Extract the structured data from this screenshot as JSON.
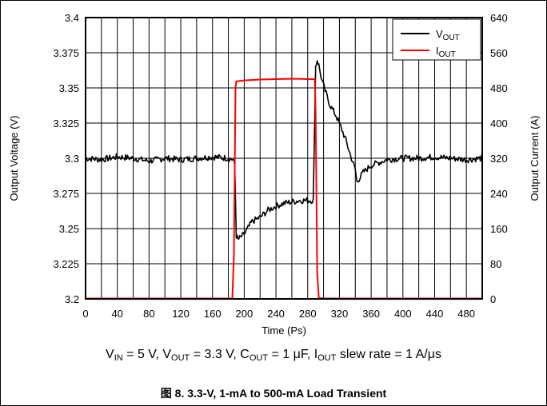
{
  "chart_data": {
    "type": "line",
    "title": "",
    "xlabel": "Time (Ps)",
    "ylabel_left": "Output Voltage (V)",
    "ylabel_right": "Output Current (A)",
    "xlim": [
      0,
      500
    ],
    "ylim_left": [
      3.2,
      3.4
    ],
    "ylim_right": [
      0,
      640
    ],
    "x_ticks": [
      "0",
      "40",
      "80",
      "120",
      "160",
      "200",
      "240",
      "280",
      "320",
      "360",
      "400",
      "440",
      "480"
    ],
    "y_ticks_left": [
      "3.2",
      "3.225",
      "3.25",
      "3.275",
      "3.3",
      "3.325",
      "3.35",
      "3.375",
      "3.4"
    ],
    "y_ticks_right": [
      "0",
      "80",
      "160",
      "240",
      "320",
      "400",
      "480",
      "560",
      "640"
    ],
    "grid": true,
    "legend_position": "top-right",
    "series": [
      {
        "name": "VOUT",
        "name_main": "V",
        "name_sub": "OUT",
        "axis": "left",
        "color": "#000000",
        "x": [
          0,
          20,
          40,
          60,
          80,
          100,
          120,
          140,
          160,
          180,
          186,
          188,
          190,
          192,
          200,
          210,
          220,
          230,
          240,
          250,
          260,
          270,
          280,
          287,
          288,
          290,
          292,
          294,
          298,
          302,
          308,
          316,
          322,
          328,
          334,
          340,
          342,
          350,
          360,
          370,
          380,
          400,
          420,
          440,
          460,
          480,
          500
        ],
        "y": [
          3.3,
          3.299,
          3.301,
          3.3,
          3.298,
          3.3,
          3.299,
          3.3,
          3.301,
          3.3,
          3.299,
          3.295,
          3.245,
          3.242,
          3.246,
          3.255,
          3.258,
          3.263,
          3.266,
          3.268,
          3.269,
          3.27,
          3.27,
          3.27,
          3.3,
          3.365,
          3.37,
          3.366,
          3.355,
          3.348,
          3.338,
          3.33,
          3.322,
          3.313,
          3.302,
          3.292,
          3.283,
          3.29,
          3.295,
          3.297,
          3.299,
          3.3,
          3.3,
          3.301,
          3.3,
          3.299,
          3.3
        ]
      },
      {
        "name": "IOUT",
        "name_main": "I",
        "name_sub": "OUT",
        "axis": "right",
        "color": "#ff0000",
        "x": [
          0,
          185,
          187,
          189,
          190,
          200,
          220,
          240,
          260,
          280,
          289,
          290,
          292,
          294,
          300,
          400,
          500
        ],
        "y": [
          1,
          1,
          100,
          480,
          495,
          497,
          499,
          500,
          501,
          500,
          500,
          420,
          60,
          2,
          1,
          1,
          1
        ]
      }
    ]
  },
  "caption": {
    "v_in": "V",
    "v_in_sub": "IN",
    "v_in_val": " = 5 V, ",
    "v_out": "V",
    "v_out_sub": "OUT",
    "v_out_val": " = 3.3 V, ",
    "c_out": "C",
    "c_out_sub": "OUT",
    "c_out_val": " = 1 μF, ",
    "i_out": "I",
    "i_out_sub": "OUT",
    "i_out_val": " slew rate = 1 A/μs"
  },
  "figure_title": "图 8. 3.3-V, 1-mA to 500-mA Load Transient"
}
